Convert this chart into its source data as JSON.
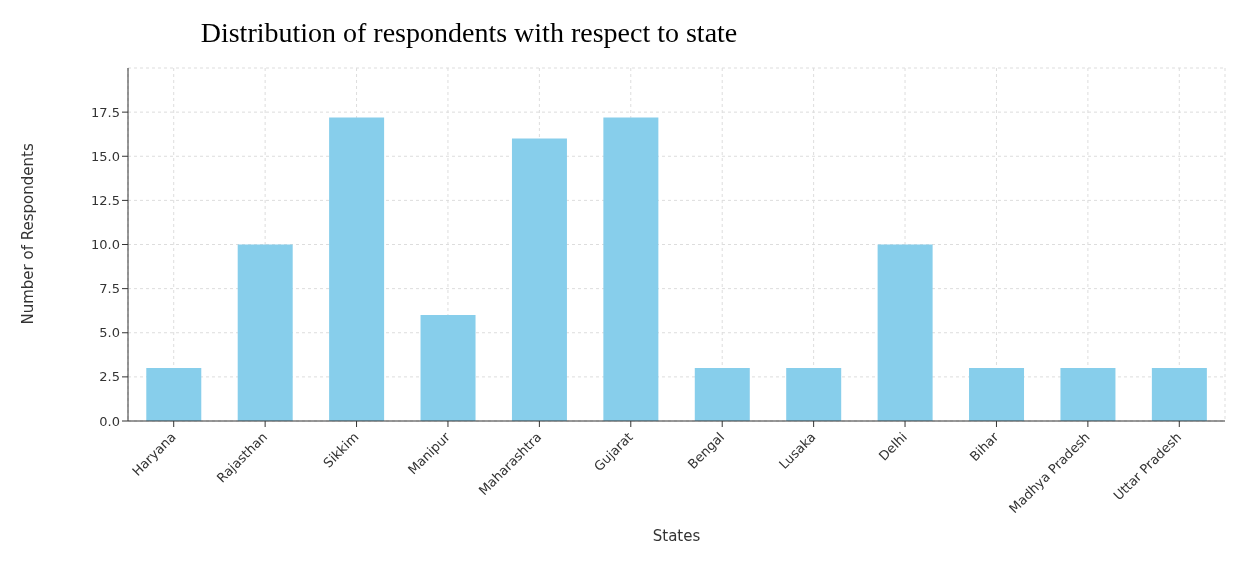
{
  "chart_data": {
    "type": "bar",
    "title": "Distribution of respondents with respect to state",
    "xlabel": "States",
    "ylabel": "Number of Respondents",
    "categories": [
      "Haryana",
      "Rajasthan",
      "Sikkim",
      "Manipur",
      "Maharashtra",
      "Gujarat",
      "Bengal",
      "Lusaka",
      "Delhi",
      "Bihar",
      "Madhya Pradesh",
      "Uttar Pradesh"
    ],
    "values": [
      3,
      10,
      17.2,
      6,
      16,
      17.2,
      3,
      3,
      10,
      3,
      3,
      3
    ],
    "color": "#87ceeb",
    "ylim": [
      0,
      20
    ],
    "yticks": [
      {
        "value": 0,
        "label": "0.0"
      },
      2.5,
      {
        "value": 5,
        "label": "5.0"
      },
      7.5,
      {
        "value": 10,
        "label": "10.0"
      },
      12.5,
      {
        "value": 15,
        "label": "15.0"
      },
      17.5
    ],
    "grid": true
  }
}
